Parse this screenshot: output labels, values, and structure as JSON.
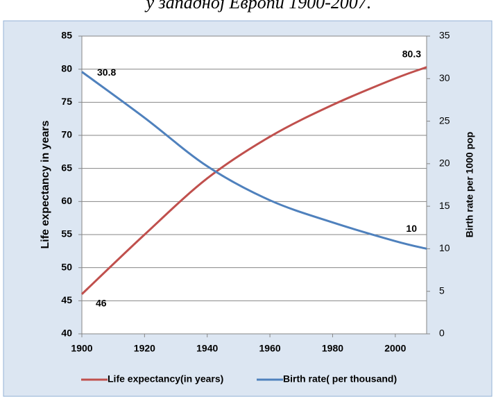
{
  "chart_data": {
    "type": "line",
    "title": "у западној Европи 1900-2007.",
    "y_label": "Life expectancy in years",
    "y2_label": "Birth rate per 1000 pop",
    "x": [
      1900,
      1920,
      1940,
      1960,
      1980,
      2000,
      2010
    ],
    "xlim": [
      1900,
      2010
    ],
    "xticks": [
      1900,
      1920,
      1940,
      1960,
      1980,
      2000
    ],
    "ylim": [
      40,
      85
    ],
    "yticks": [
      40,
      45,
      50,
      55,
      60,
      65,
      70,
      75,
      80,
      85
    ],
    "y2lim": [
      0,
      35
    ],
    "y2ticks": [
      0,
      5,
      10,
      15,
      20,
      25,
      30,
      35
    ],
    "grid": true,
    "legend": "bottom",
    "series": [
      {
        "name": "Life expectancy(in years)",
        "color": "#c0504d",
        "values": [
          46,
          55,
          63.5,
          69.8,
          74.6,
          78.6,
          80.3
        ]
      },
      {
        "name": "Birth rate( per thousand)",
        "color": "#4f81bd",
        "axis": "y2",
        "values": [
          30.8,
          25.4,
          19.7,
          15.7,
          13.1,
          10.9,
          10
        ]
      }
    ]
  }
}
